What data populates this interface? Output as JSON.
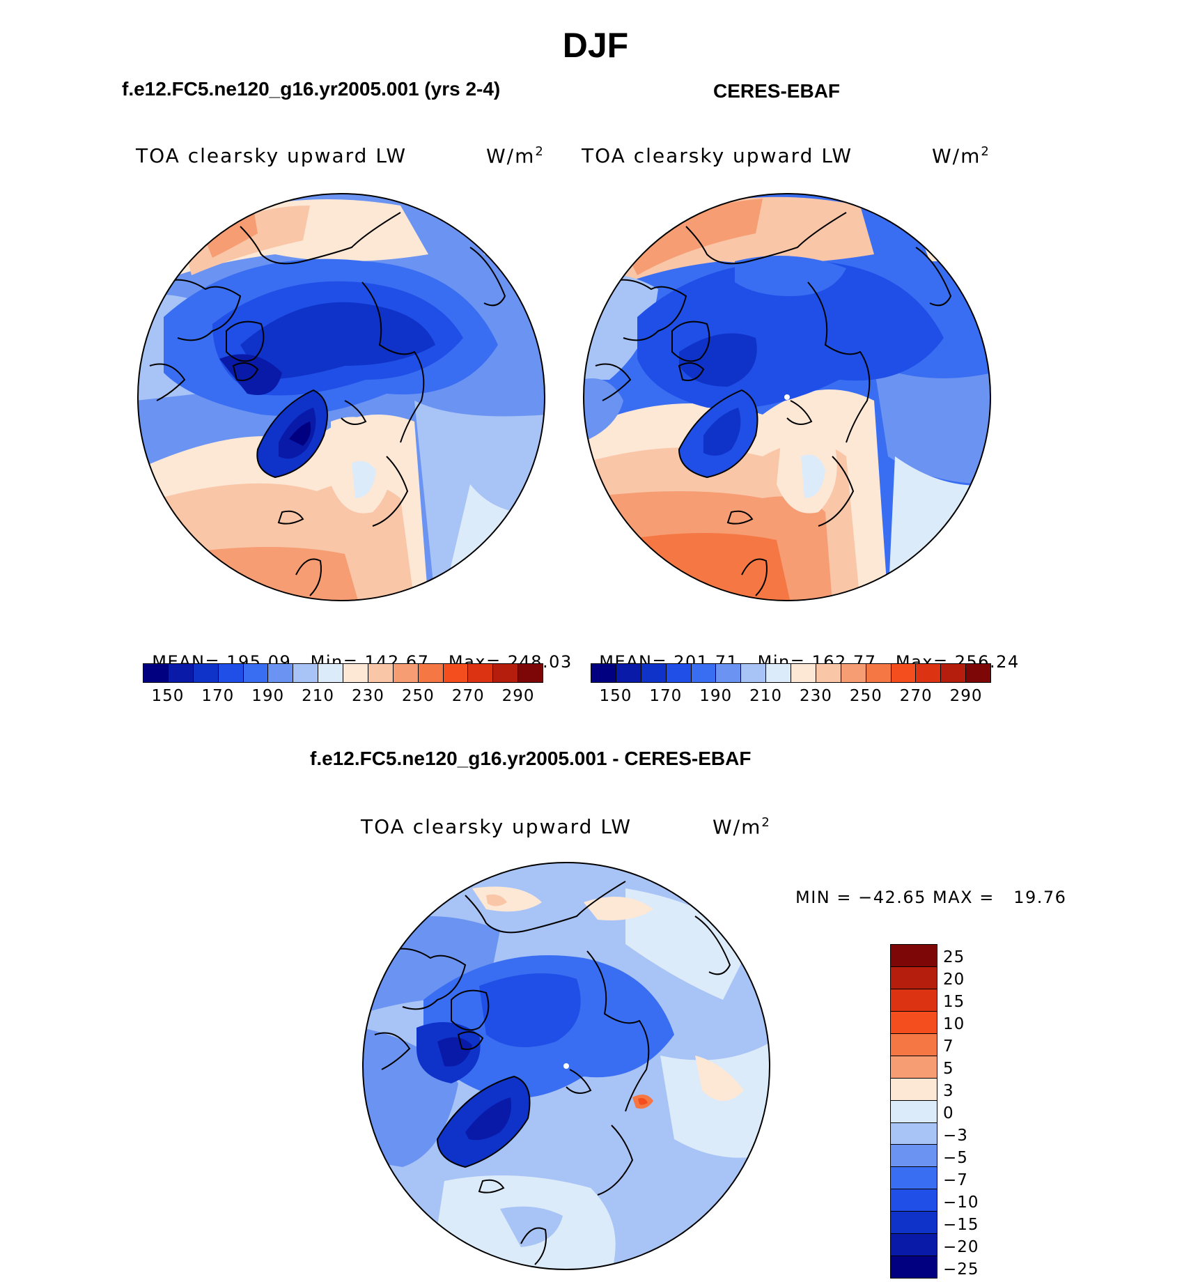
{
  "page_title": "DJF",
  "panels": {
    "model": {
      "heading": "f.e12.FC5.ne120_g16.yr2005.001 (yrs 2-4)",
      "variable": "TOA clearsky upward LW",
      "units": "W/m",
      "units_sup": "2",
      "stats": {
        "mean_label": "MEAN=",
        "mean": "195.09",
        "min_label": "Min=",
        "min": "142.67",
        "max_label": "Max=",
        "max": "248.03"
      }
    },
    "obs": {
      "heading": "CERES-EBAF",
      "variable": "TOA clearsky upward LW",
      "units": "W/m",
      "units_sup": "2",
      "stats": {
        "mean_label": "MEAN=",
        "mean": "201.71",
        "min_label": "Min=",
        "min": "162.77",
        "max_label": "Max=",
        "max": "256.24"
      }
    },
    "diff": {
      "heading": "f.e12.FC5.ne120_g16.yr2005.001 - CERES-EBAF",
      "variable": "TOA clearsky upward LW",
      "units": "W/m",
      "units_sup": "2",
      "minmax": "MIN = −42.65 MAX =   19.76"
    }
  },
  "colorbar_abs": {
    "colors": [
      "#000080",
      "#0a1aa8",
      "#0f32c8",
      "#1f4fe6",
      "#3a6ef2",
      "#6b93f2",
      "#a8c3f5",
      "#dcebfa",
      "#fde8d6",
      "#f9c6a8",
      "#f69d74",
      "#f57844",
      "#f44e1e",
      "#dc3312",
      "#b51e0c",
      "#7d0606"
    ],
    "labels": [
      "150",
      "170",
      "190",
      "210",
      "230",
      "250",
      "270",
      "290"
    ]
  },
  "colorbar_diff": {
    "colors": [
      "#7d0606",
      "#b51e0c",
      "#dc3312",
      "#f44e1e",
      "#f57844",
      "#f69d74",
      "#fde8d6",
      "#dcebfa",
      "#a8c3f5",
      "#6b93f2",
      "#3a6ef2",
      "#1f4fe6",
      "#0f32c8",
      "#0a1aa8",
      "#000080"
    ],
    "labels": [
      "25",
      "20",
      "15",
      "10",
      "7",
      "5",
      "3",
      "0",
      "−3",
      "−5",
      "−7",
      "−10",
      "−15",
      "−20",
      "−25"
    ]
  }
}
